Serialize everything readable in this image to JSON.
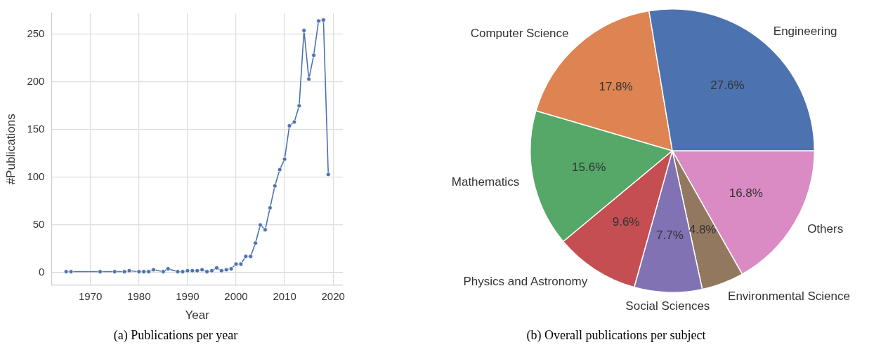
{
  "chart_data": [
    {
      "type": "line",
      "xlabel": "Year",
      "ylabel": "#Publications",
      "annotations": [
        "(a) Publications per year"
      ],
      "x": [
        1965,
        1966,
        1972,
        1975,
        1977,
        1978,
        1980,
        1981,
        1982,
        1983,
        1985,
        1986,
        1988,
        1989,
        1990,
        1991,
        1992,
        1993,
        1994,
        1995,
        1996,
        1997,
        1998,
        1999,
        2000,
        2001,
        2002,
        2003,
        2004,
        2005,
        2006,
        2007,
        2008,
        2009,
        2010,
        2011,
        2012,
        2013,
        2014,
        2015,
        2016,
        2017,
        2018,
        2019
      ],
      "series": [
        {
          "color": "#4c72b0",
          "values": [
            1,
            1,
            1,
            1,
            1,
            2,
            1,
            1,
            1,
            3,
            1,
            4,
            1,
            1,
            2,
            2,
            2,
            3,
            1,
            2,
            5,
            2,
            3,
            4,
            9,
            9,
            17,
            17,
            31,
            50,
            45,
            68,
            91,
            108,
            119,
            154,
            158,
            175,
            254,
            203,
            228,
            264,
            265,
            103
          ]
        }
      ],
      "xlim": [
        1962,
        2022
      ],
      "ylim": [
        -13,
        272
      ],
      "xticks": [
        1970,
        1980,
        1990,
        2000,
        2010,
        2020
      ],
      "yticks": [
        0,
        50,
        100,
        150,
        200,
        250
      ],
      "grid": true,
      "legend": false,
      "marker": "circle",
      "line_style": "solid"
    },
    {
      "type": "pie",
      "annotations": [
        "(b) Overall publications per subject"
      ],
      "categories": [
        "Engineering",
        "Computer Science",
        "Mathematics",
        "Physics and Astronomy",
        "Social Sciences",
        "Environmental Science",
        "Others"
      ],
      "values": [
        27.6,
        17.8,
        15.6,
        9.6,
        7.7,
        4.8,
        16.8
      ],
      "value_labels": [
        "27.6%",
        "17.8%",
        "15.6%",
        "9.6%",
        "7.7%",
        "4.8%",
        "16.8%"
      ],
      "colors": [
        "#4c72b0",
        "#dd8452",
        "#55a868",
        "#c44e52",
        "#8172b3",
        "#937860",
        "#da8bc3"
      ],
      "legend": false
    }
  ]
}
